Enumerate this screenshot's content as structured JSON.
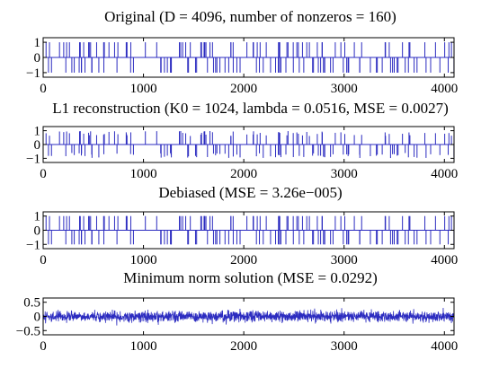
{
  "chart_data": [
    {
      "type": "line",
      "title": "Original (D = 4096, number of nonzeros = 160)",
      "xlim": [
        0,
        4096
      ],
      "ylim": [
        -1.3,
        1.3
      ],
      "yticks": [
        1,
        0,
        -1
      ],
      "ytick_labels": [
        "1",
        "0",
        "−1"
      ],
      "xticks": [
        0,
        1000,
        2000,
        3000,
        4000
      ],
      "xtick_labels": [
        "0",
        "1000",
        "2000",
        "3000",
        "4000"
      ],
      "signal": "sparse",
      "amplitude_scale": 1.0,
      "spike_count": 160
    },
    {
      "type": "line",
      "title": "L1 reconstruction (K0 = 1024, lambda = 0.0516, MSE = 0.0027)",
      "xlim": [
        0,
        4096
      ],
      "ylim": [
        -1.3,
        1.3
      ],
      "yticks": [
        1,
        0,
        -1
      ],
      "ytick_labels": [
        "1",
        "0",
        "−1"
      ],
      "xticks": [
        0,
        1000,
        2000,
        3000,
        4000
      ],
      "xtick_labels": [
        "0",
        "1000",
        "2000",
        "3000",
        "4000"
      ],
      "signal": "sparse",
      "amplitude_scale": 0.82,
      "spike_count": 160
    },
    {
      "type": "line",
      "title": "Debiased (MSE = 3.26e−005)",
      "xlim": [
        0,
        4096
      ],
      "ylim": [
        -1.3,
        1.3
      ],
      "yticks": [
        1,
        0,
        -1
      ],
      "ytick_labels": [
        "1",
        "0",
        "−1"
      ],
      "xticks": [
        0,
        1000,
        2000,
        3000,
        4000
      ],
      "xtick_labels": [
        "0",
        "1000",
        "2000",
        "3000",
        "4000"
      ],
      "signal": "sparse",
      "amplitude_scale": 1.0,
      "spike_count": 160
    },
    {
      "type": "line",
      "title": "Minimum norm solution (MSE = 0.0292)",
      "xlim": [
        0,
        4096
      ],
      "ylim": [
        -0.65,
        0.65
      ],
      "yticks": [
        0.5,
        0,
        -0.5
      ],
      "ytick_labels": [
        "0.5",
        "0",
        "−0.5"
      ],
      "xticks": [
        0,
        1000,
        2000,
        3000,
        4000
      ],
      "xtick_labels": [
        "0",
        "1000",
        "2000",
        "3000",
        "4000"
      ],
      "signal": "dense",
      "noise_sigma": 0.17
    }
  ],
  "colors": {
    "line": "#2c2cc0",
    "axes": "#000000"
  }
}
